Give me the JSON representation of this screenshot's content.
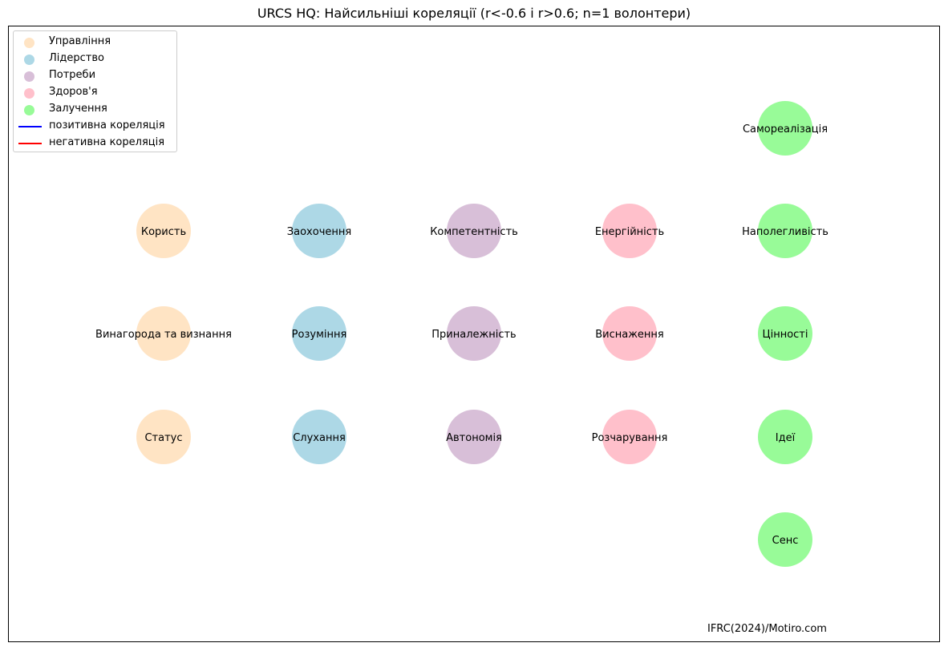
{
  "title": "URCS HQ: Найсильніші кореляції (r<-0.6 і r>0.6; n=1 волонтери)",
  "credit": "IFRC(2024)/Motiro.com",
  "legend": {
    "groups": [
      {
        "label": "Управління",
        "color": "#ffe4c4"
      },
      {
        "label": "Лідерство",
        "color": "#add8e6"
      },
      {
        "label": "Потреби",
        "color": "#d8bfd8"
      },
      {
        "label": "Здоров'я",
        "color": "#ffc0cb"
      },
      {
        "label": "Залучення",
        "color": "#98fb98"
      }
    ],
    "lines": [
      {
        "label": "позитивна кореляція",
        "color": "#0000ff"
      },
      {
        "label": "негативна кореляція",
        "color": "#ff0000"
      }
    ]
  },
  "nodes": [
    {
      "label": "Користь",
      "group": 0
    },
    {
      "label": "Винагорода та визнання",
      "group": 0
    },
    {
      "label": "Статус",
      "group": 0
    },
    {
      "label": "Заохочення",
      "group": 1
    },
    {
      "label": "Розуміння",
      "group": 1
    },
    {
      "label": "Слухання",
      "group": 1
    },
    {
      "label": "Компетентність",
      "group": 2
    },
    {
      "label": "Приналежність",
      "group": 2
    },
    {
      "label": "Автономія",
      "group": 2
    },
    {
      "label": "Енергійність",
      "group": 3
    },
    {
      "label": "Виснаження",
      "group": 3
    },
    {
      "label": "Розчарування",
      "group": 3
    },
    {
      "label": "Самореалізація",
      "group": 4
    },
    {
      "label": "Наполегливість",
      "group": 4
    },
    {
      "label": "Цінності",
      "group": 4
    },
    {
      "label": "Ідеї",
      "group": 4
    },
    {
      "label": "Сенс",
      "group": 4
    }
  ],
  "edges": []
}
